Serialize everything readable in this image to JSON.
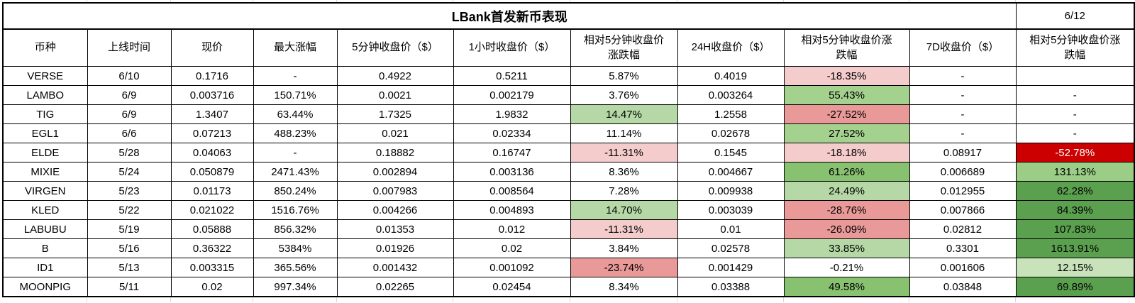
{
  "table": {
    "title": "LBank首发新币表现",
    "date": "6/12",
    "columns": [
      "币种",
      "上线时间",
      "现价",
      "最大涨幅",
      "5分钟收盘价（$）",
      "1小时收盘价（$）",
      "相对5分钟收盘价\n涨跌幅",
      "24H收盘价（$）",
      "相对5分钟收盘价涨\n跌幅",
      "7D收盘价（$）",
      "相对5分钟收盘价涨\n跌幅"
    ],
    "rows": [
      [
        "VERSE",
        "6/10",
        "0.1716",
        "-",
        "0.4922",
        "0.5211",
        "5.87%",
        "0.4019",
        {
          "t": "-18.35%",
          "bg": "#f4cccc"
        },
        "-",
        ""
      ],
      [
        "LAMBO",
        "6/9",
        "0.003716",
        "150.71%",
        "0.0021",
        "0.002179",
        "3.76%",
        "0.003264",
        {
          "t": "55.43%",
          "bg": "#a5d18f"
        },
        "-",
        "-"
      ],
      [
        "TIG",
        "6/9",
        "1.3407",
        "63.44%",
        "1.7325",
        "1.9832",
        {
          "t": "14.47%",
          "bg": "#b5d8a6"
        },
        "1.2558",
        {
          "t": "-27.52%",
          "bg": "#ea9999"
        },
        "-",
        "-"
      ],
      [
        "EGL1",
        "6/6",
        "0.07213",
        "488.23%",
        "0.021",
        "0.02334",
        "11.14%",
        "0.02678",
        {
          "t": "27.52%",
          "bg": "#a5d18f"
        },
        "-",
        "-"
      ],
      [
        "ELDE",
        "5/28",
        "0.04063",
        "-",
        "0.18882",
        "0.16747",
        {
          "t": "-11.31%",
          "bg": "#f4cccc"
        },
        "0.1545",
        {
          "t": "-18.18%",
          "bg": "#f4cccc"
        },
        "0.08917",
        {
          "t": "-52.78%",
          "bg": "#cc0000",
          "fg": "#ffffff"
        }
      ],
      [
        "MIXIE",
        "5/24",
        "0.050879",
        "2471.43%",
        "0.002894",
        "0.003136",
        "8.36%",
        "0.004667",
        {
          "t": "61.26%",
          "bg": "#88c170"
        },
        "0.006689",
        {
          "t": "131.13%",
          "bg": "#9ccd86"
        }
      ],
      [
        "VIRGEN",
        "5/23",
        "0.01173",
        "850.24%",
        "0.007983",
        "0.008564",
        "7.28%",
        "0.009938",
        {
          "t": "24.49%",
          "bg": "#b5d8a6"
        },
        "0.012955",
        {
          "t": "62.28%",
          "bg": "#5ba04e"
        }
      ],
      [
        "KLED",
        "5/22",
        "0.021022",
        "1516.76%",
        "0.004266",
        "0.004893",
        {
          "t": "14.70%",
          "bg": "#b5d8a6"
        },
        "0.003039",
        {
          "t": "-28.76%",
          "bg": "#ea9999"
        },
        "0.007866",
        {
          "t": "84.39%",
          "bg": "#5ba04e"
        }
      ],
      [
        "LABUBU",
        "5/19",
        "0.05888",
        "856.32%",
        "0.01353",
        "0.012",
        {
          "t": "-11.31%",
          "bg": "#f4cccc"
        },
        "0.01",
        {
          "t": "-26.09%",
          "bg": "#ea9999"
        },
        "0.02812",
        {
          "t": "107.83%",
          "bg": "#5ba04e"
        }
      ],
      [
        "B",
        "5/16",
        "0.36322",
        "5384%",
        "0.01926",
        "0.02",
        "3.84%",
        "0.02578",
        {
          "t": "33.85%",
          "bg": "#b5d8a6"
        },
        "0.3301",
        {
          "t": "1613.91%",
          "bg": "#5ba04e"
        }
      ],
      [
        "ID1",
        "5/13",
        "0.003315",
        "365.56%",
        "0.001432",
        "0.001092",
        {
          "t": "-23.74%",
          "bg": "#ea9999"
        },
        "0.001429",
        "-0.21%",
        "0.001606",
        {
          "t": "12.15%",
          "bg": "#c8e3ba"
        }
      ],
      [
        "MOONPIG",
        "5/11",
        "0.02",
        "997.34%",
        "0.02265",
        "0.02454",
        "8.34%",
        "0.03388",
        {
          "t": "49.58%",
          "bg": "#88c170"
        },
        "0.03848",
        {
          "t": "69.89%",
          "bg": "#5ba04e"
        }
      ]
    ],
    "status_colors": {
      "loss_light": "#f4cccc",
      "loss_medium": "#ea9999",
      "loss_strong": "#cc0000",
      "gain_very_light": "#c8e3ba",
      "gain_light": "#b5d8a6",
      "gain_medium_light": "#a5d18f",
      "gain_medium": "#9ccd86",
      "gain_strong": "#88c170",
      "gain_dark": "#5ba04e"
    }
  }
}
